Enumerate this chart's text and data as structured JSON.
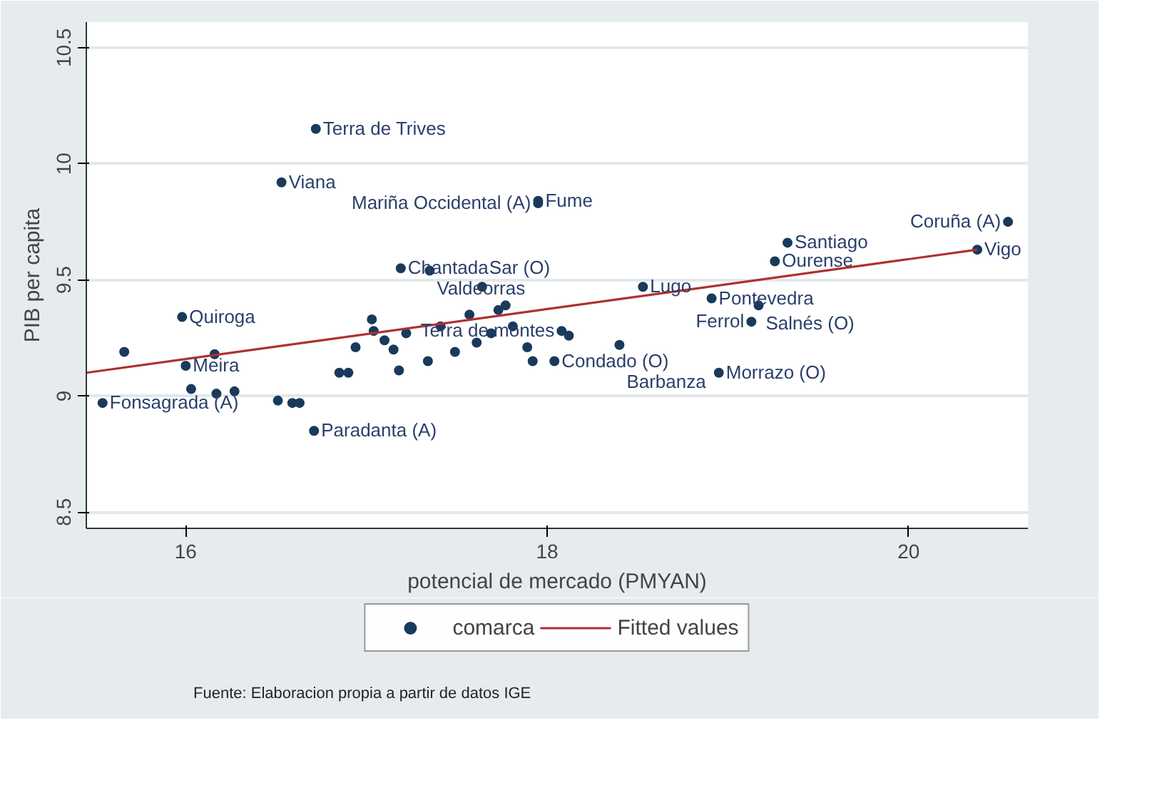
{
  "chart_data": {
    "type": "scatter",
    "xlabel": "potencial de mercado (PMYAN)",
    "ylabel": "PIB per capita",
    "xlim": [
      15.45,
      20.66
    ],
    "ylim": [
      8.43,
      10.61
    ],
    "xticks": [
      16,
      18,
      20
    ],
    "yticks": [
      8.5,
      9,
      9.5,
      10,
      10.5
    ],
    "grid": "y",
    "legend": "bottom",
    "marker": "circle",
    "series": [
      {
        "name": "comarca",
        "color": "#1a3a5c",
        "x": [
          16.72,
          16.53,
          17.95,
          17.95,
          20.55,
          20.38,
          19.33,
          19.26,
          17.19,
          17.35,
          17.64,
          18.53,
          18.91,
          19.17,
          19.13,
          18.95,
          15.98,
          15.66,
          16.0,
          16.03,
          15.54,
          16.71,
          16.63,
          17.03,
          18.04,
          18.08,
          17.73,
          18.4,
          17.04,
          17.1,
          17.15,
          16.94,
          16.85,
          16.9,
          17.18,
          17.34,
          17.49,
          17.61,
          17.69,
          17.81,
          17.57,
          17.77,
          17.89,
          17.92,
          18.12,
          17.41,
          17.22,
          16.17,
          16.27,
          16.16,
          16.51,
          16.59
        ],
        "values": [
          10.15,
          9.92,
          9.84,
          9.83,
          9.75,
          9.63,
          9.66,
          9.58,
          9.55,
          9.54,
          9.47,
          9.47,
          9.42,
          9.39,
          9.32,
          9.1,
          9.34,
          9.19,
          9.13,
          9.03,
          8.97,
          8.85,
          8.97,
          9.33,
          9.15,
          9.28,
          9.37,
          9.22,
          9.28,
          9.24,
          9.2,
          9.21,
          9.1,
          9.1,
          9.11,
          9.15,
          9.19,
          9.23,
          9.27,
          9.3,
          9.35,
          9.39,
          9.21,
          9.15,
          9.26,
          9.3,
          9.27,
          9.01,
          9.02,
          9.18,
          8.98,
          8.97
        ]
      },
      {
        "name": "Fitted values",
        "type": "line",
        "marker": "none",
        "color": "#b03030",
        "x": [
          15.45,
          20.38
        ],
        "values": [
          9.1,
          9.63
        ]
      }
    ],
    "annotations": [
      {
        "text": "Terra de Trives",
        "x": 16.72,
        "y": 10.15
      },
      {
        "text": "Viana",
        "x": 16.53,
        "y": 9.92
      },
      {
        "text": "Fume",
        "x": 17.95,
        "y": 9.84
      },
      {
        "text": "Mariña Occidental (A)",
        "x": 17.95,
        "y": 9.83
      },
      {
        "text": "Coruña (A)",
        "x": 20.55,
        "y": 9.75
      },
      {
        "text": "Vigo",
        "x": 20.38,
        "y": 9.63
      },
      {
        "text": "Santiago",
        "x": 19.33,
        "y": 9.66
      },
      {
        "text": "Ourense",
        "x": 19.26,
        "y": 9.58
      },
      {
        "text": "Chantada",
        "x": 17.19,
        "y": 9.55
      },
      {
        "text": "Valdeorras",
        "x": 17.35,
        "y": 9.54
      },
      {
        "text": "Sar (O)",
        "x": 17.64,
        "y": 9.47
      },
      {
        "text": "Lugo",
        "x": 18.53,
        "y": 9.47
      },
      {
        "text": "Pontevedra",
        "x": 18.91,
        "y": 9.42
      },
      {
        "text": "Salnés (O)",
        "x": 19.17,
        "y": 9.39
      },
      {
        "text": "Ferrol",
        "x": 19.13,
        "y": 9.32
      },
      {
        "text": "Morrazo (O)",
        "x": 18.95,
        "y": 9.1
      },
      {
        "text": "Quiroga",
        "x": 15.98,
        "y": 9.34
      },
      {
        "text": "Meira",
        "x": 16.0,
        "y": 9.13
      },
      {
        "text": "Fonsagrada (A)",
        "x": 15.54,
        "y": 8.97
      },
      {
        "text": "Paradanta (A)",
        "x": 16.71,
        "y": 8.85
      },
      {
        "text": "Condado (O)",
        "x": 18.04,
        "y": 9.15
      },
      {
        "text": "Terra de montes",
        "x": 18.08,
        "y": 9.28
      },
      {
        "text": "Barbanza",
        "x": 18.4,
        "y": 9.22
      },
      "Fuente: Elaboracion propia a partir de datos IGE"
    ]
  }
}
